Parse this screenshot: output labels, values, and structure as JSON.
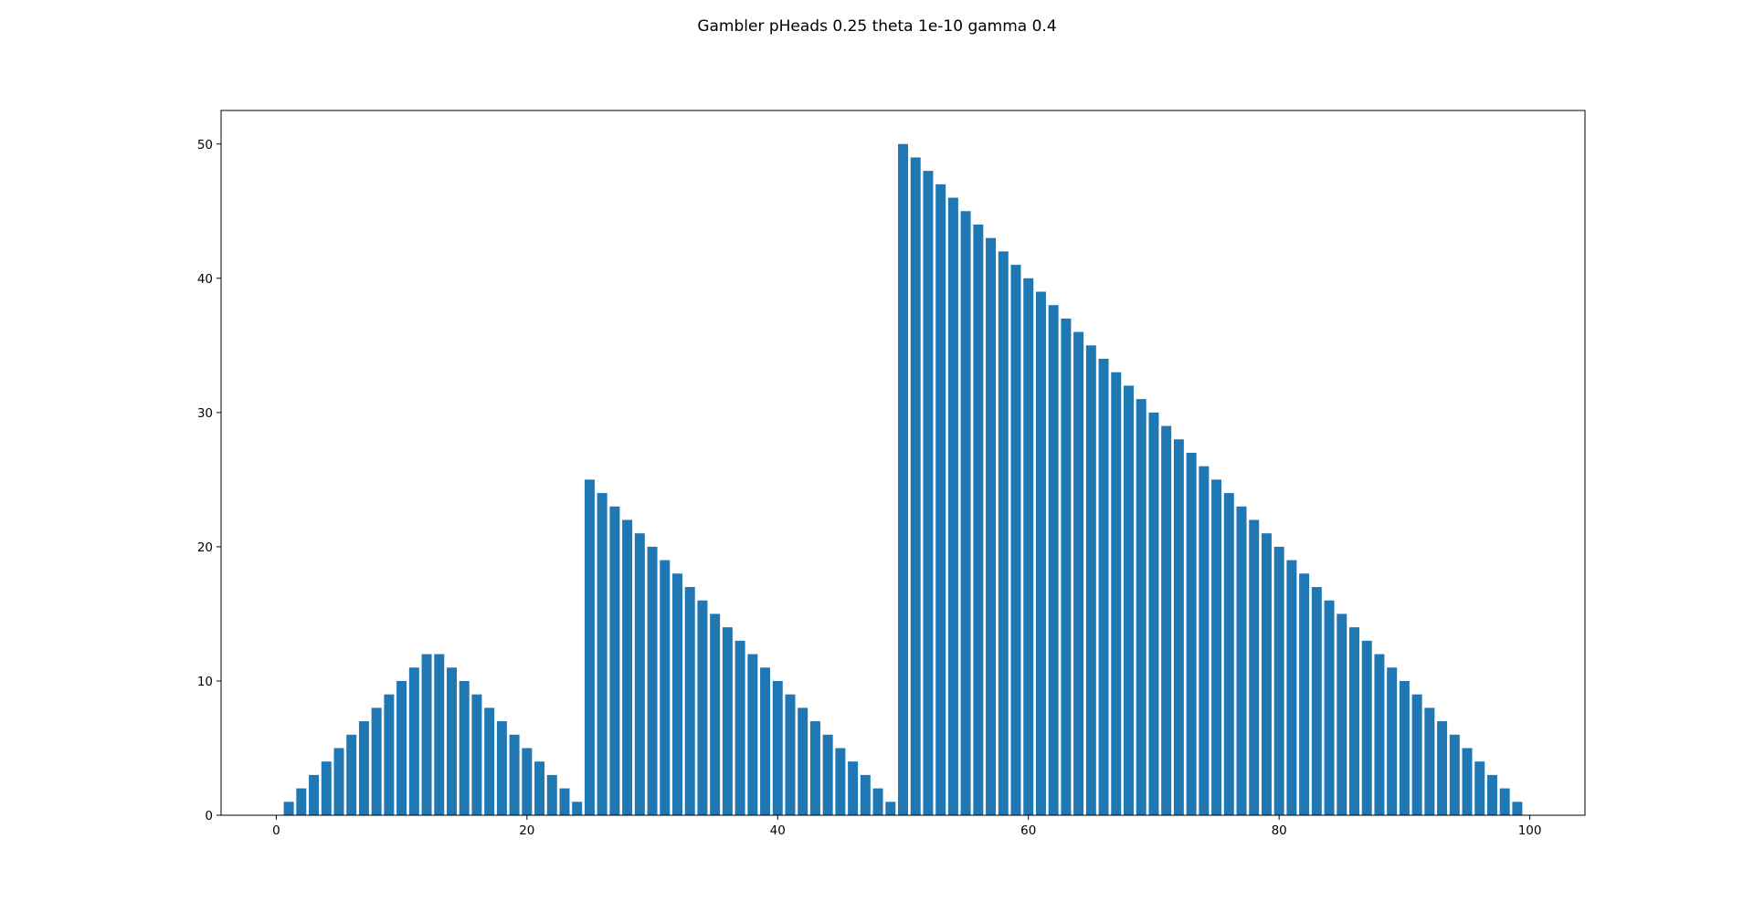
{
  "chart_data": {
    "type": "bar",
    "title": "Gambler pHeads 0.25 theta 1e-10 gamma 0.4",
    "xlabel": "",
    "ylabel": "",
    "x": [
      1,
      2,
      3,
      4,
      5,
      6,
      7,
      8,
      9,
      10,
      11,
      12,
      13,
      14,
      15,
      16,
      17,
      18,
      19,
      20,
      21,
      22,
      23,
      24,
      25,
      26,
      27,
      28,
      29,
      30,
      31,
      32,
      33,
      34,
      35,
      36,
      37,
      38,
      39,
      40,
      41,
      42,
      43,
      44,
      45,
      46,
      47,
      48,
      49,
      50,
      51,
      52,
      53,
      54,
      55,
      56,
      57,
      58,
      59,
      60,
      61,
      62,
      63,
      64,
      65,
      66,
      67,
      68,
      69,
      70,
      71,
      72,
      73,
      74,
      75,
      76,
      77,
      78,
      79,
      80,
      81,
      82,
      83,
      84,
      85,
      86,
      87,
      88,
      89,
      90,
      91,
      92,
      93,
      94,
      95,
      96,
      97,
      98,
      99
    ],
    "values": [
      1,
      2,
      3,
      4,
      5,
      6,
      7,
      8,
      9,
      10,
      11,
      12,
      12,
      11,
      10,
      9,
      8,
      7,
      6,
      5,
      4,
      3,
      2,
      1,
      25,
      24,
      23,
      22,
      21,
      20,
      19,
      18,
      17,
      16,
      15,
      14,
      13,
      12,
      11,
      10,
      9,
      8,
      7,
      6,
      5,
      4,
      3,
      2,
      1,
      50,
      49,
      48,
      47,
      46,
      45,
      44,
      43,
      42,
      41,
      40,
      39,
      38,
      37,
      36,
      35,
      34,
      33,
      32,
      31,
      30,
      29,
      28,
      27,
      26,
      25,
      24,
      23,
      22,
      21,
      20,
      19,
      18,
      17,
      16,
      15,
      14,
      13,
      12,
      11,
      10,
      9,
      8,
      7,
      6,
      5,
      4,
      3,
      2,
      1
    ],
    "xlim": [
      -4.4,
      104.4
    ],
    "ylim": [
      0,
      52.5
    ],
    "xticks": [
      0,
      20,
      40,
      60,
      80,
      100
    ],
    "yticks": [
      0,
      10,
      20,
      30,
      40,
      50
    ],
    "bar_color": "#1f77b4",
    "grid": false,
    "legend": "none"
  }
}
